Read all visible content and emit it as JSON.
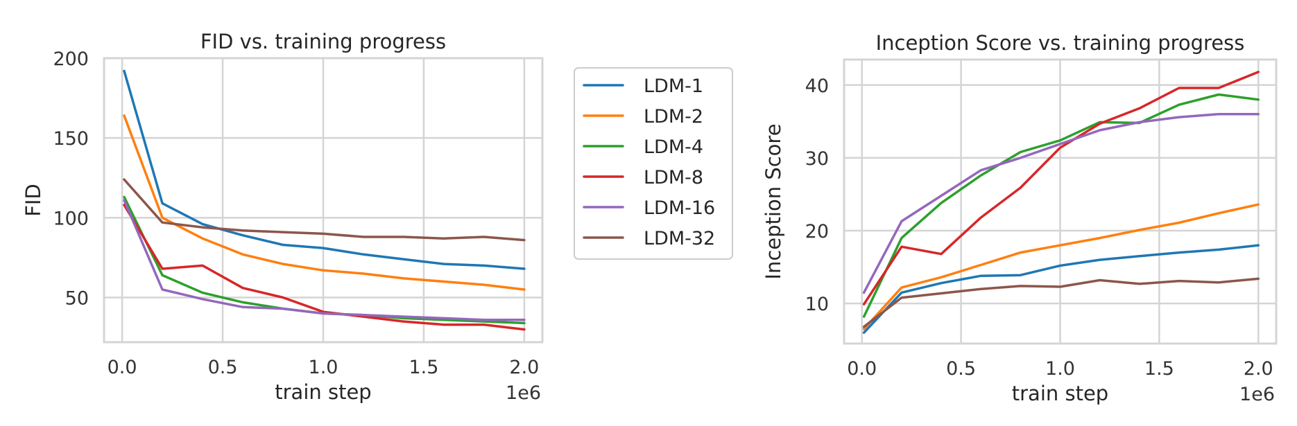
{
  "colors": {
    "LDM-1": "#1f77b4",
    "LDM-2": "#ff7f0e",
    "LDM-4": "#2ca02c",
    "LDM-8": "#d62728",
    "LDM-16": "#9467bd",
    "LDM-32": "#8c564b"
  },
  "legend": {
    "placement": "right of left plot",
    "entries": [
      "LDM-1",
      "LDM-2",
      "LDM-4",
      "LDM-8",
      "LDM-16",
      "LDM-32"
    ]
  },
  "chart_data": [
    {
      "type": "line",
      "title": "FID vs. training progress",
      "xlabel": "train step",
      "ylabel": "FID",
      "x_offset_label": "1e6",
      "xlim": [
        -0.09,
        2.09
      ],
      "ylim": [
        22,
        200
      ],
      "xticks": [
        0.0,
        0.5,
        1.0,
        1.5,
        2.0
      ],
      "xtick_labels": [
        "0.0",
        "0.5",
        "1.0",
        "1.5",
        "2.0"
      ],
      "yticks": [
        50,
        100,
        150,
        200
      ],
      "ytick_labels": [
        "50",
        "100",
        "150",
        "200"
      ],
      "grid": true,
      "x": [
        0.01,
        0.2,
        0.4,
        0.6,
        0.8,
        1.0,
        1.2,
        1.4,
        1.6,
        1.8,
        2.0
      ],
      "series": [
        {
          "name": "LDM-1",
          "values": [
            192,
            109,
            96,
            89,
            83,
            81,
            77,
            74,
            71,
            70,
            68
          ]
        },
        {
          "name": "LDM-2",
          "values": [
            164,
            100,
            87,
            77,
            71,
            67,
            65,
            62,
            60,
            58,
            55
          ]
        },
        {
          "name": "LDM-4",
          "values": [
            113,
            64,
            53,
            47,
            43,
            40,
            39,
            37,
            36,
            35,
            34
          ]
        },
        {
          "name": "LDM-8",
          "values": [
            108,
            68,
            70,
            56,
            50,
            41,
            38,
            35,
            33,
            33,
            30
          ]
        },
        {
          "name": "LDM-16",
          "values": [
            111,
            55,
            49,
            44,
            43,
            40,
            39,
            38,
            37,
            36,
            36
          ]
        },
        {
          "name": "LDM-32",
          "values": [
            124,
            97,
            94,
            92,
            91,
            90,
            88,
            88,
            87,
            88,
            86
          ]
        }
      ]
    },
    {
      "type": "line",
      "title": "Inception Score vs. training progress",
      "xlabel": "train step",
      "ylabel": "Inception Score",
      "x_offset_label": "1e6",
      "xlim": [
        -0.09,
        2.09
      ],
      "ylim": [
        4.5,
        43.5
      ],
      "xticks": [
        0.0,
        0.5,
        1.0,
        1.5,
        2.0
      ],
      "xtick_labels": [
        "0.0",
        "0.5",
        "1.0",
        "1.5",
        "2.0"
      ],
      "yticks": [
        10,
        20,
        30,
        40
      ],
      "ytick_labels": [
        "10",
        "20",
        "30",
        "40"
      ],
      "grid": true,
      "x": [
        0.01,
        0.2,
        0.4,
        0.6,
        0.8,
        1.0,
        1.2,
        1.4,
        1.6,
        1.8,
        2.0
      ],
      "series": [
        {
          "name": "LDM-1",
          "values": [
            6.0,
            11.5,
            12.8,
            13.8,
            13.9,
            15.2,
            16.0,
            16.5,
            17.0,
            17.4,
            18.0
          ]
        },
        {
          "name": "LDM-2",
          "values": [
            6.5,
            12.2,
            13.6,
            15.3,
            17.0,
            18.0,
            19.0,
            20.1,
            21.1,
            22.4,
            23.6
          ]
        },
        {
          "name": "LDM-4",
          "values": [
            8.2,
            19.0,
            23.8,
            27.6,
            30.8,
            32.4,
            34.9,
            34.8,
            37.3,
            38.7,
            38.0
          ]
        },
        {
          "name": "LDM-8",
          "values": [
            9.9,
            17.8,
            16.8,
            21.8,
            25.9,
            31.4,
            34.7,
            36.8,
            39.6,
            39.6,
            41.8
          ]
        },
        {
          "name": "LDM-16",
          "values": [
            11.5,
            21.3,
            24.8,
            28.3,
            30.0,
            31.9,
            33.8,
            34.9,
            35.6,
            36.0,
            36.0
          ]
        },
        {
          "name": "LDM-32",
          "values": [
            6.8,
            10.8,
            11.4,
            12.0,
            12.4,
            12.3,
            13.2,
            12.7,
            13.1,
            12.9,
            13.4
          ]
        }
      ]
    }
  ]
}
